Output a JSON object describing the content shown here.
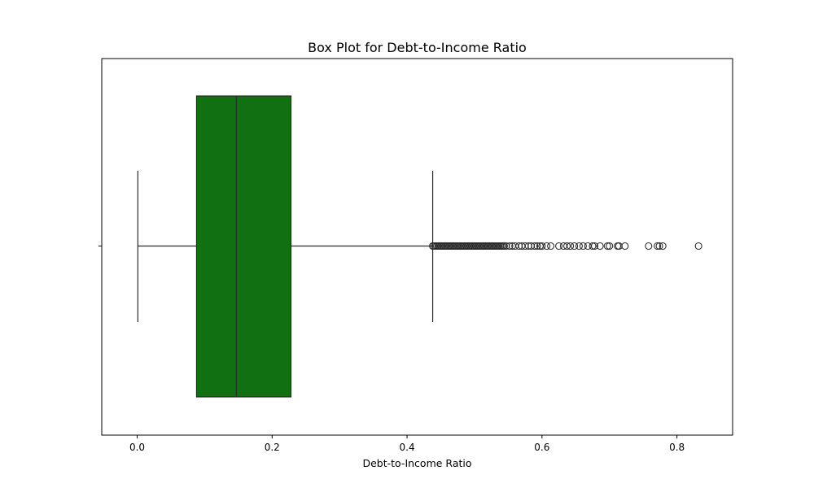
{
  "chart_data": {
    "type": "box",
    "title": "Box Plot for Debt-to-Income Ratio",
    "xlabel": "Debt-to-Income Ratio",
    "ylabel": "",
    "xlim": [
      -0.0525,
      0.8825
    ],
    "xticks": [
      0.0,
      0.2,
      0.4,
      0.6,
      0.8
    ],
    "xtick_labels": [
      "0.0",
      "0.2",
      "0.4",
      "0.6",
      "0.8"
    ],
    "orientation": "horizontal",
    "grid": false,
    "legend": "none",
    "box": {
      "whisker_low": 0.001,
      "q1": 0.088,
      "median": 0.147,
      "q3": 0.228,
      "whisker_high": 0.438,
      "fill_color": "#117011",
      "edge_color": "#2b2b2b"
    },
    "outliers": [
      0.438,
      0.44,
      0.442,
      0.444,
      0.446,
      0.448,
      0.45,
      0.452,
      0.454,
      0.456,
      0.458,
      0.46,
      0.462,
      0.464,
      0.466,
      0.468,
      0.47,
      0.472,
      0.474,
      0.476,
      0.478,
      0.48,
      0.482,
      0.484,
      0.486,
      0.488,
      0.49,
      0.492,
      0.494,
      0.496,
      0.498,
      0.5,
      0.502,
      0.504,
      0.506,
      0.508,
      0.51,
      0.512,
      0.514,
      0.516,
      0.518,
      0.52,
      0.522,
      0.524,
      0.526,
      0.528,
      0.53,
      0.532,
      0.534,
      0.536,
      0.538,
      0.54,
      0.542,
      0.544,
      0.547,
      0.552,
      0.556,
      0.56,
      0.566,
      0.57,
      0.575,
      0.58,
      0.584,
      0.589,
      0.593,
      0.597,
      0.6,
      0.607,
      0.613,
      0.625,
      0.632,
      0.637,
      0.642,
      0.648,
      0.655,
      0.661,
      0.668,
      0.675,
      0.678,
      0.686,
      0.697,
      0.7,
      0.712,
      0.714,
      0.723,
      0.758,
      0.771,
      0.774,
      0.779,
      0.832
    ]
  }
}
